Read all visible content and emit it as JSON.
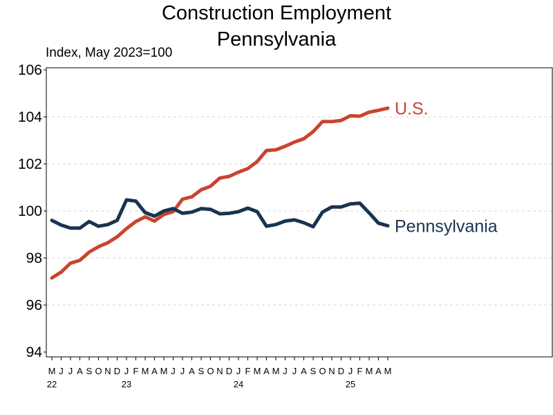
{
  "chart_data": {
    "type": "line",
    "title": "Construction Employment",
    "subtitle": "Pennsylvania",
    "ylabel": "Index, May 2023=100",
    "ylim": [
      94,
      106
    ],
    "yticks": [
      94,
      96,
      98,
      100,
      102,
      104,
      106
    ],
    "grid": "horizontal-dashed",
    "x_month_labels": [
      "M",
      "J",
      "J",
      "A",
      "S",
      "O",
      "N",
      "D",
      "J",
      "F",
      "M",
      "A",
      "M",
      "J",
      "J",
      "A",
      "S",
      "O",
      "N",
      "D",
      "J",
      "F",
      "M",
      "A",
      "M",
      "J",
      "J",
      "A",
      "S",
      "O",
      "N",
      "D",
      "J",
      "F",
      "M",
      "A",
      "M"
    ],
    "x_year_labels": [
      {
        "label": "22",
        "index": 0
      },
      {
        "label": "23",
        "index": 8
      },
      {
        "label": "24",
        "index": 20
      },
      {
        "label": "25",
        "index": 32
      }
    ],
    "series": [
      {
        "name": "U.S.",
        "color": "#c9442f",
        "values": [
          97.15,
          97.4,
          97.78,
          97.9,
          98.25,
          98.48,
          98.65,
          98.9,
          99.25,
          99.55,
          99.75,
          99.57,
          99.85,
          99.97,
          100.5,
          100.6,
          100.9,
          101.05,
          101.4,
          101.47,
          101.65,
          101.8,
          102.1,
          102.57,
          102.6,
          102.75,
          102.93,
          103.07,
          103.37,
          103.8,
          103.8,
          103.85,
          104.05,
          104.03,
          104.2,
          104.28,
          104.37
        ]
      },
      {
        "name": "Pennsylvania",
        "color": "#1a3350",
        "values": [
          99.6,
          99.4,
          99.27,
          99.27,
          99.55,
          99.35,
          99.42,
          99.6,
          100.47,
          100.42,
          99.93,
          99.78,
          100.0,
          100.1,
          99.9,
          99.95,
          100.1,
          100.07,
          99.88,
          99.9,
          99.97,
          100.12,
          99.97,
          99.35,
          99.42,
          99.57,
          99.62,
          99.5,
          99.33,
          99.95,
          100.17,
          100.17,
          100.3,
          100.33,
          99.92,
          99.48,
          99.37
        ]
      }
    ]
  }
}
